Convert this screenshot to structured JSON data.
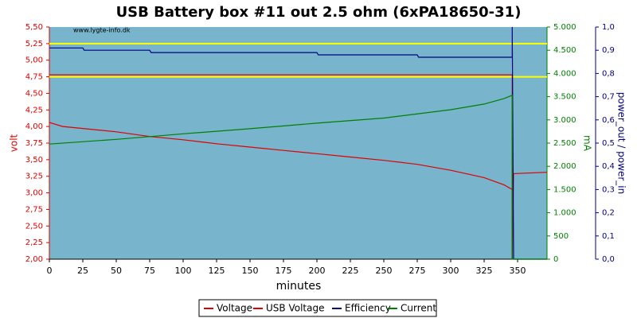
{
  "chart_data": {
    "type": "line",
    "title": "USB Battery box #11 out 2.5 ohm (6xPA18650-31)",
    "watermark": "www.lygte-info.dk",
    "x_label": "minutes",
    "y_label": "volt",
    "y2_label": "mA",
    "y3_label": "power_out / power_in",
    "background": "#78b4cc",
    "xlim": [
      0,
      372
    ],
    "xticks": [
      0,
      25,
      50,
      75,
      100,
      125,
      150,
      175,
      200,
      225,
      250,
      275,
      300,
      325,
      350
    ],
    "ylim": [
      2,
      5.5
    ],
    "yticks": [
      {
        "value": 2,
        "label": "2,00"
      },
      {
        "value": 2.25,
        "label": "2,25"
      },
      {
        "value": 2.5,
        "label": "2,50"
      },
      {
        "value": 2.75,
        "label": "2,75"
      },
      {
        "value": 3,
        "label": "3,00"
      },
      {
        "value": 3.25,
        "label": "3,25"
      },
      {
        "value": 3.5,
        "label": "3,50"
      },
      {
        "value": 3.75,
        "label": "3,75"
      },
      {
        "value": 4,
        "label": "4,00"
      },
      {
        "value": 4.25,
        "label": "4,25"
      },
      {
        "value": 4.5,
        "label": "4,50"
      },
      {
        "value": 4.75,
        "label": "4,75"
      },
      {
        "value": 5,
        "label": "5,00"
      },
      {
        "value": 5.25,
        "label": "5,25"
      },
      {
        "value": 5.5,
        "label": "5,50"
      }
    ],
    "y2lim": [
      0,
      5000
    ],
    "y2ticks": [
      0,
      500,
      {
        "value": 1000,
        "label": "1.000"
      },
      {
        "value": 1500,
        "label": "1.500"
      },
      {
        "value": 2000,
        "label": "2.000"
      },
      {
        "value": 2500,
        "label": "2.500"
      },
      {
        "value": 3000,
        "label": "3.000"
      },
      {
        "value": 3500,
        "label": "3.500"
      },
      {
        "value": 4000,
        "label": "4.000"
      },
      {
        "value": 4500,
        "label": "4.500"
      },
      {
        "value": 5000,
        "label": "5.000"
      }
    ],
    "y3lim": [
      0,
      1
    ],
    "y3ticks": [
      {
        "value": 0,
        "label": "0,0"
      },
      {
        "value": 0.1,
        "label": "0,1"
      },
      {
        "value": 0.2,
        "label": "0,2"
      },
      {
        "value": 0.3,
        "label": "0,3"
      },
      {
        "value": 0.4,
        "label": "0,4"
      },
      {
        "value": 0.5,
        "label": "0,5"
      },
      {
        "value": 0.6,
        "label": "0,6"
      },
      {
        "value": 0.7,
        "label": "0,7"
      },
      {
        "value": 0.8,
        "label": "0,8"
      },
      {
        "value": 0.9,
        "label": "0,9"
      },
      {
        "value": 1,
        "label": "1,0"
      }
    ],
    "reference_lines": {
      "color": "#ffff00",
      "values": [
        5.25,
        4.75
      ]
    },
    "series": [
      {
        "name": "Voltage",
        "color": "#e00000",
        "axis": "y",
        "x": [
          0,
          10,
          25,
          50,
          75,
          100,
          125,
          150,
          175,
          200,
          225,
          250,
          275,
          300,
          325,
          340,
          346,
          346,
          347,
          372
        ],
        "values": [
          4.06,
          4.0,
          3.97,
          3.92,
          3.85,
          3.8,
          3.74,
          3.69,
          3.64,
          3.59,
          3.54,
          3.49,
          3.43,
          3.34,
          3.23,
          3.12,
          3.05,
          2.0,
          3.29,
          3.31
        ]
      },
      {
        "name": "USB Voltage",
        "color": "#e00000",
        "axis": "y",
        "x": [
          0,
          346,
          346
        ],
        "values": [
          4.78,
          4.78,
          2.0
        ]
      },
      {
        "name": "Efficiency",
        "color": "#000080",
        "axis": "y3",
        "x": [
          0,
          25,
          26,
          75,
          76,
          200,
          201,
          275,
          276,
          340,
          346,
          346,
          347,
          372
        ],
        "values": [
          0.91,
          0.91,
          0.9,
          0.9,
          0.89,
          0.89,
          0.88,
          0.88,
          0.87,
          0.87,
          0.87,
          1.0,
          0,
          0
        ]
      },
      {
        "name": "Current",
        "color": "#008000",
        "axis": "y2",
        "x": [
          0,
          50,
          100,
          150,
          200,
          250,
          300,
          325,
          340,
          346,
          346,
          372
        ],
        "values": [
          2480,
          2580,
          2700,
          2810,
          2930,
          3040,
          3220,
          3340,
          3460,
          3530,
          0,
          0
        ]
      }
    ]
  }
}
